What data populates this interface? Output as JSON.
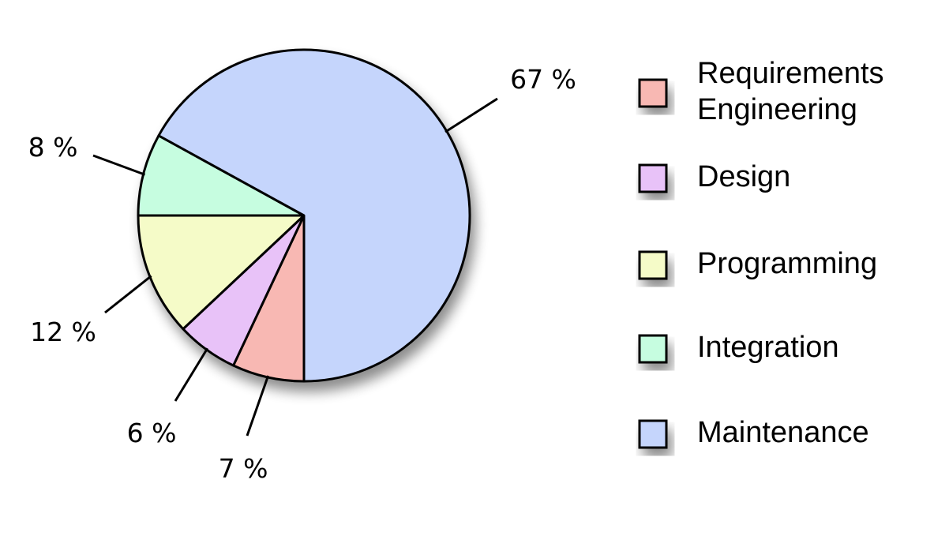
{
  "chart_data": {
    "type": "pie",
    "slices": [
      {
        "label": "Requirements Engineering",
        "label_lines": [
          "Requirements",
          "Engineering"
        ],
        "value": 7,
        "value_label": "7 %",
        "color": "#f8b8b3"
      },
      {
        "label": "Design",
        "label_lines": [
          "Design"
        ],
        "value": 6,
        "value_label": "6 %",
        "color": "#e8c2f8"
      },
      {
        "label": "Programming",
        "label_lines": [
          "Programming"
        ],
        "value": 12,
        "value_label": "12 %",
        "color": "#f5fbc8"
      },
      {
        "label": "Integration",
        "label_lines": [
          "Integration"
        ],
        "value": 8,
        "value_label": "8 %",
        "color": "#c6fde0"
      },
      {
        "label": "Maintenance",
        "label_lines": [
          "Maintenance"
        ],
        "value": 67,
        "value_label": "67 %",
        "color": "#c5d5fc"
      }
    ],
    "start_angle": "bottom",
    "direction": "clockwise",
    "legend": "right",
    "title": "",
    "stroke_color": "#000000"
  }
}
